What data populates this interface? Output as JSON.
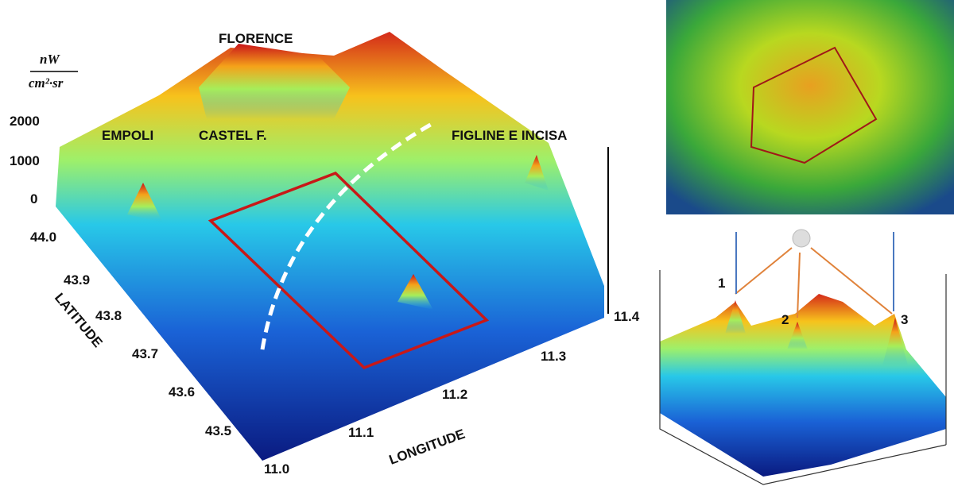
{
  "main_plot": {
    "unit_numerator": "nW",
    "unit_denominator": "cm²·sr",
    "z_ticks": [
      "2000",
      "1000",
      "0"
    ],
    "cities": [
      "FLORENCE",
      "EMPOLI",
      "CASTEL F.",
      "FIGLINE E INCISA"
    ],
    "latitude_label": "LATITUDE",
    "latitude_ticks": [
      "44.0",
      "43.9",
      "43.8",
      "43.7",
      "43.6",
      "43.5"
    ],
    "longitude_label": "LONGITUDE",
    "longitude_ticks": [
      "11.0",
      "11.1",
      "11.2",
      "11.3",
      "11.4"
    ]
  },
  "inset": {
    "peak_labels": [
      "1",
      "2",
      "3"
    ]
  }
}
